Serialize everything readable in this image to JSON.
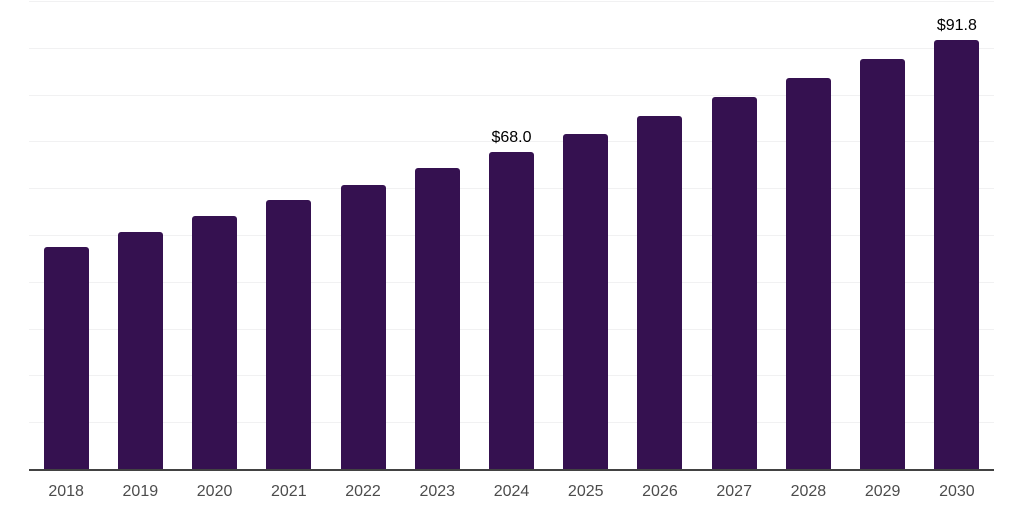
{
  "chart_data": {
    "type": "bar",
    "title": "",
    "xlabel": "",
    "ylabel": "",
    "categories": [
      "2018",
      "2019",
      "2020",
      "2021",
      "2022",
      "2023",
      "2024",
      "2025",
      "2026",
      "2027",
      "2028",
      "2029",
      "2030"
    ],
    "values": [
      47.6,
      50.9,
      54.3,
      57.7,
      61.0,
      64.5,
      68.0,
      71.8,
      75.7,
      79.8,
      83.8,
      87.8,
      91.8
    ],
    "point_labels": [
      "",
      "",
      "",
      "",
      "",
      "",
      "$68.0",
      "",
      "",
      "",
      "",
      "",
      "$91.8"
    ],
    "ylim": [
      0,
      100
    ],
    "gridline_step": 10,
    "grid": true,
    "y_tick_labels_visible": false,
    "legend_position": "none",
    "colors": {
      "bar": "#351150",
      "axis_line": "#424242",
      "gridline": "#f1f1f2",
      "tick_label": "#4c4c4c",
      "value_label": "#000000",
      "background": "#ffffff"
    }
  }
}
